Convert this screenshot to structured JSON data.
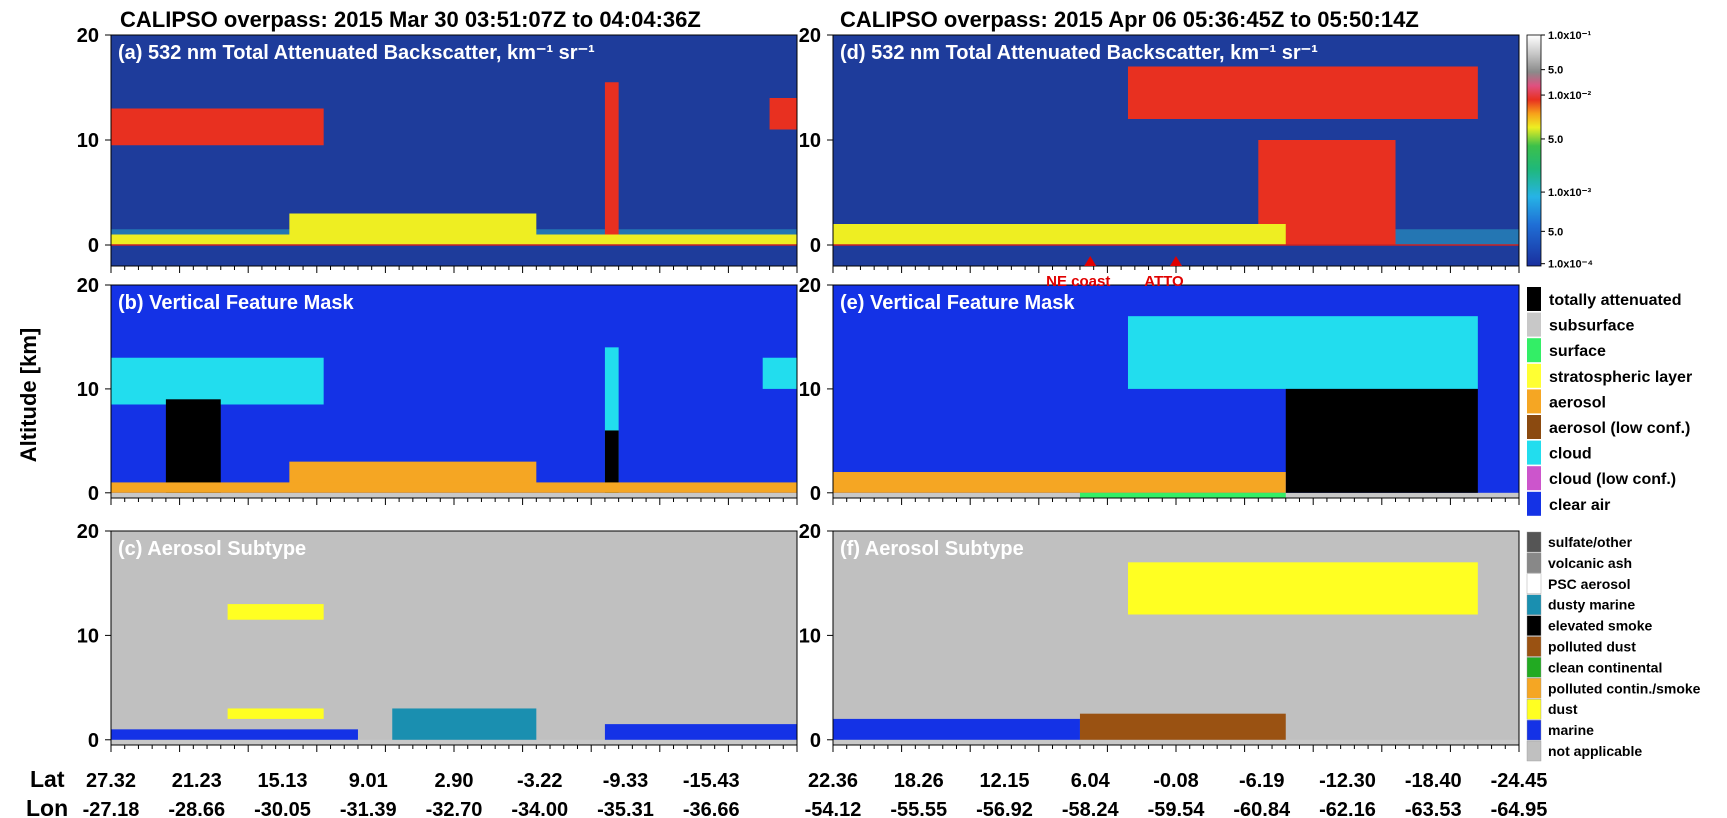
{
  "figure": {
    "title_left": "CALIPSO overpass: 2015 Mar 30 03:51:07Z to 04:04:36Z",
    "title_right": "CALIPSO overpass: 2015 Apr 06 05:36:45Z to 05:50:14Z",
    "ylabel": "Altitude [km]",
    "lat_label": "Lat",
    "lon_label": "Lon"
  },
  "colors": {
    "vfm_background": "#1432e6",
    "aerosol_background": "#c0c0c0",
    "backscatter_background": "#1e3c9b",
    "surface_line": "#cc2222",
    "marker": "#e00000"
  },
  "chart_data": [
    {
      "type": "heatmap",
      "panel": "a",
      "title": "(a) 532 nm Total Attenuated Backscatter, km⁻¹ sr⁻¹",
      "ylabel": "Altitude [km]",
      "ylim": [
        -2,
        20
      ],
      "yticks": [
        0,
        10,
        20
      ],
      "lat_ticks": [
        "27.32",
        "21.23",
        "15.13",
        "9.01",
        "2.90",
        "-3.22",
        "-9.33",
        "-15.43"
      ],
      "lon_ticks": [
        "-27.18",
        "-28.66",
        "-30.05",
        "-31.39",
        "-32.70",
        "-34.00",
        "-35.31",
        "-36.66"
      ],
      "features": [
        {
          "kind": "cloud",
          "x": [
            0,
            0.31
          ],
          "y": [
            9.5,
            13
          ]
        },
        {
          "kind": "cloud",
          "x": [
            0.72,
            0.74
          ],
          "y": [
            0,
            15.5
          ]
        },
        {
          "kind": "cloud",
          "x": [
            0.96,
            1.0
          ],
          "y": [
            11,
            14
          ]
        },
        {
          "kind": "aerosol",
          "x": [
            0.26,
            0.62
          ],
          "y": [
            0,
            3
          ]
        },
        {
          "kind": "aerosol",
          "x": [
            0.0,
            1.0
          ],
          "y": [
            0,
            1
          ]
        }
      ]
    },
    {
      "type": "heatmap",
      "panel": "b",
      "title": "(b) Vertical Feature Mask",
      "ylim": [
        -0.5,
        20
      ],
      "yticks": [
        0,
        10,
        20
      ],
      "features": [
        {
          "kind": "cloud",
          "x": [
            0,
            0.31
          ],
          "y": [
            8.5,
            13
          ]
        },
        {
          "kind": "totally attenuated",
          "x": [
            0.08,
            0.16
          ],
          "y": [
            0,
            9
          ]
        },
        {
          "kind": "cloud",
          "x": [
            0.72,
            0.74
          ],
          "y": [
            0,
            14
          ]
        },
        {
          "kind": "totally attenuated",
          "x": [
            0.72,
            0.74
          ],
          "y": [
            0,
            6
          ]
        },
        {
          "kind": "cloud",
          "x": [
            0.95,
            1.0
          ],
          "y": [
            10,
            13
          ]
        },
        {
          "kind": "aerosol",
          "x": [
            0.26,
            0.62
          ],
          "y": [
            0.5,
            3
          ]
        },
        {
          "kind": "aerosol",
          "x": [
            0.0,
            1.0
          ],
          "y": [
            0,
            1
          ]
        }
      ]
    },
    {
      "type": "heatmap",
      "panel": "c",
      "title": "(c) Aerosol Subtype",
      "ylim": [
        -0.5,
        20
      ],
      "yticks": [
        0,
        10,
        20
      ],
      "features": [
        {
          "kind": "marine",
          "x": [
            0,
            0.36
          ],
          "y": [
            0,
            1
          ]
        },
        {
          "kind": "dusty marine",
          "x": [
            0.41,
            0.62
          ],
          "y": [
            0,
            3
          ]
        },
        {
          "kind": "marine",
          "x": [
            0.72,
            1.0
          ],
          "y": [
            0,
            1.5
          ]
        },
        {
          "kind": "dust",
          "x": [
            0.17,
            0.31
          ],
          "y": [
            11.5,
            13
          ]
        },
        {
          "kind": "dust",
          "x": [
            0.17,
            0.31
          ],
          "y": [
            2,
            3
          ]
        }
      ]
    },
    {
      "type": "heatmap",
      "panel": "d",
      "title": "(d) 532 nm Total Attenuated Backscatter, km⁻¹ sr⁻¹",
      "ylim": [
        -2,
        20
      ],
      "yticks": [
        0,
        10,
        20
      ],
      "lat_ticks": [
        "22.36",
        "18.26",
        "12.15",
        "6.04",
        "-0.08",
        "-6.19",
        "-12.30",
        "-18.40",
        "-24.45"
      ],
      "lon_ticks": [
        "-54.12",
        "-55.55",
        "-56.92",
        "-58.24",
        "-59.54",
        "-60.84",
        "-62.16",
        "-63.53",
        "-64.95"
      ],
      "annotations": [
        {
          "text": "NE coast",
          "x_lat": "6.04"
        },
        {
          "text": "ATTO",
          "x_lat": "-0.08"
        }
      ],
      "colorbar": {
        "scale": "log",
        "labels": [
          "1.0x10⁻¹",
          "5.0",
          "1.0x10⁻²",
          "5.0",
          "1.0x10⁻³",
          "5.0",
          "1.0x10⁻⁴"
        ]
      },
      "features": [
        {
          "kind": "cloud",
          "x": [
            0.43,
            0.94
          ],
          "y": [
            12,
            17
          ]
        },
        {
          "kind": "cloud",
          "x": [
            0.62,
            0.82
          ],
          "y": [
            0,
            10
          ]
        },
        {
          "kind": "aerosol",
          "x": [
            0,
            0.66
          ],
          "y": [
            0,
            2
          ]
        }
      ]
    },
    {
      "type": "heatmap",
      "panel": "e",
      "title": "(e) Vertical Feature Mask",
      "ylim": [
        -0.5,
        20
      ],
      "yticks": [
        0,
        10,
        20
      ],
      "legend": [
        {
          "label": "totally attenuated",
          "color": "#000000"
        },
        {
          "label": "subsurface",
          "color": "#c8c8c8"
        },
        {
          "label": "surface",
          "color": "#33ee66"
        },
        {
          "label": "stratospheric layer",
          "color": "#ffff33"
        },
        {
          "label": "aerosol",
          "color": "#f5a623"
        },
        {
          "label": "aerosol (low conf.)",
          "color": "#8b4a10"
        },
        {
          "label": "cloud",
          "color": "#22ddee"
        },
        {
          "label": "cloud (low conf.)",
          "color": "#cc55cc"
        },
        {
          "label": "clear air",
          "color": "#1432e6"
        }
      ],
      "features": [
        {
          "kind": "cloud",
          "x": [
            0.43,
            0.94
          ],
          "y": [
            10,
            17
          ]
        },
        {
          "kind": "totally attenuated",
          "x": [
            0.66,
            0.94
          ],
          "y": [
            0,
            10
          ]
        },
        {
          "kind": "aerosol",
          "x": [
            0,
            0.66
          ],
          "y": [
            0,
            2
          ]
        },
        {
          "kind": "surface",
          "x": [
            0.36,
            0.66
          ],
          "y": [
            -0.5,
            0
          ]
        }
      ]
    },
    {
      "type": "heatmap",
      "panel": "f",
      "title": "(f) Aerosol Subtype",
      "ylim": [
        -0.5,
        20
      ],
      "yticks": [
        0,
        10,
        20
      ],
      "legend": [
        {
          "label": "sulfate/other",
          "color": "#555555"
        },
        {
          "label": "volcanic ash",
          "color": "#888888"
        },
        {
          "label": "PSC aerosol",
          "color": "#ffffff"
        },
        {
          "label": "dusty marine",
          "color": "#1a8fb0"
        },
        {
          "label": "elevated smoke",
          "color": "#000000"
        },
        {
          "label": "polluted dust",
          "color": "#9a5212"
        },
        {
          "label": "clean continental",
          "color": "#22aa22"
        },
        {
          "label": "polluted contin./smoke",
          "color": "#f5a623"
        },
        {
          "label": "dust",
          "color": "#ffff22"
        },
        {
          "label": "marine",
          "color": "#1432e6"
        },
        {
          "label": "not applicable",
          "color": "#c0c0c0"
        }
      ],
      "features": [
        {
          "kind": "marine",
          "x": [
            0,
            0.36
          ],
          "y": [
            0,
            2
          ]
        },
        {
          "kind": "polluted dust",
          "x": [
            0.36,
            0.66
          ],
          "y": [
            0,
            2.5
          ]
        },
        {
          "kind": "dust",
          "x": [
            0.43,
            0.94
          ],
          "y": [
            12,
            17
          ]
        }
      ]
    }
  ]
}
